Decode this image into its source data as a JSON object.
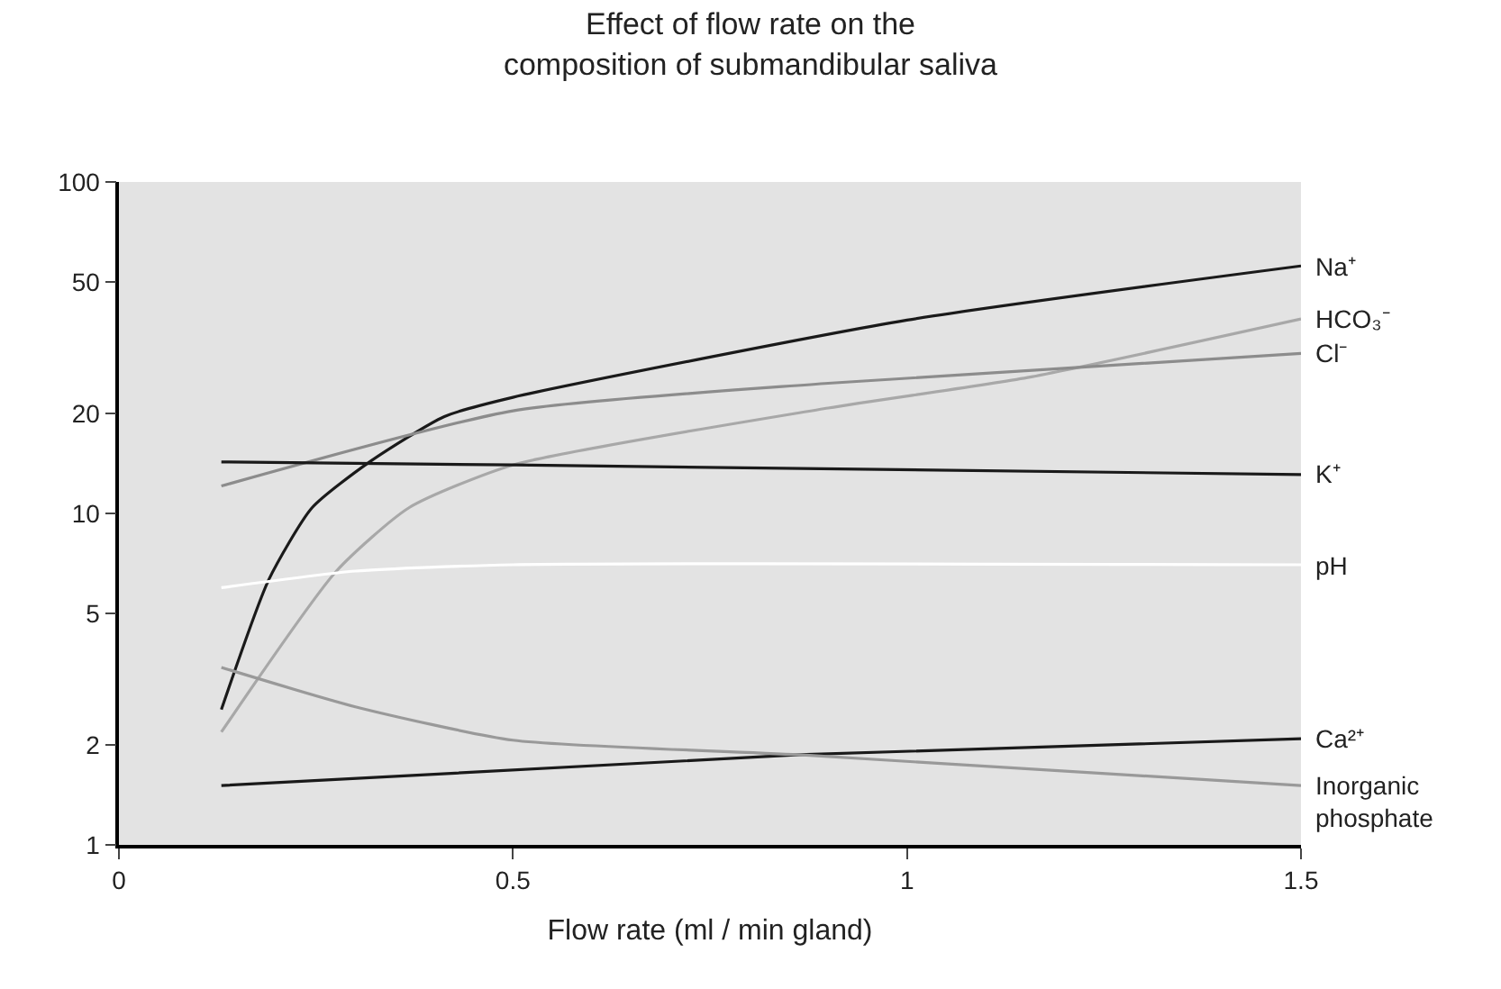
{
  "chart_data": {
    "type": "line",
    "title": "Effect of flow rate on the\ncomposition of submandibular saliva",
    "xlabel": "Flow rate (ml / min gland)",
    "log": "y",
    "grid": false,
    "legend": false,
    "marker": "none",
    "line_style": "solid",
    "xlim": [
      0,
      1.5
    ],
    "xticks": [
      0,
      0.5,
      1,
      1.5
    ],
    "ylim": [
      1,
      100
    ],
    "yticks": [
      1,
      2,
      5,
      10,
      20,
      50,
      100
    ],
    "series": [
      {
        "name": "Na⁺",
        "color": "#1a1a1a",
        "x": [
          0.13,
          0.19,
          0.245,
          0.318,
          0.413,
          0.5,
          1,
          1.5
        ],
        "values": [
          2.56,
          6.3,
          10.4,
          14.3,
          19.6,
          22.4,
          38.3,
          55.8
        ]
      },
      {
        "name": "HCO₃⁻",
        "color": "#a8a8a8",
        "x": [
          0.13,
          0.276,
          0.368,
          0.5,
          0.9,
          1.153,
          1.5
        ],
        "values": [
          2.19,
          6.7,
          10.4,
          14.0,
          20.8,
          25.7,
          38.6
        ]
      },
      {
        "name": "Cl⁻",
        "color": "#8c8c8c",
        "x": [
          0.13,
          0.5,
          0.9,
          1.5
        ],
        "values": [
          12.1,
          20.4,
          24.7,
          30.4
        ]
      },
      {
        "name": "K⁺",
        "color": "#1a1a1a",
        "x": [
          0.13,
          0.5,
          1.5
        ],
        "values": [
          14.3,
          14.0,
          13.1
        ]
      },
      {
        "name": "pH",
        "color": "#ffffff",
        "x": [
          0.13,
          0.3,
          0.5,
          1.5
        ],
        "values": [
          5.97,
          6.7,
          7.0,
          7.0
        ]
      },
      {
        "name": "Ca²⁺",
        "color": "#1a1a1a",
        "x": [
          0.13,
          0.863,
          1.5
        ],
        "values": [
          1.51,
          1.87,
          2.09
        ]
      },
      {
        "name": "Inorganic phosphate",
        "color": "#999999",
        "x": [
          0.13,
          0.3,
          0.5,
          0.863,
          1.5
        ],
        "values": [
          3.43,
          2.61,
          2.07,
          1.87,
          1.51
        ]
      }
    ]
  }
}
